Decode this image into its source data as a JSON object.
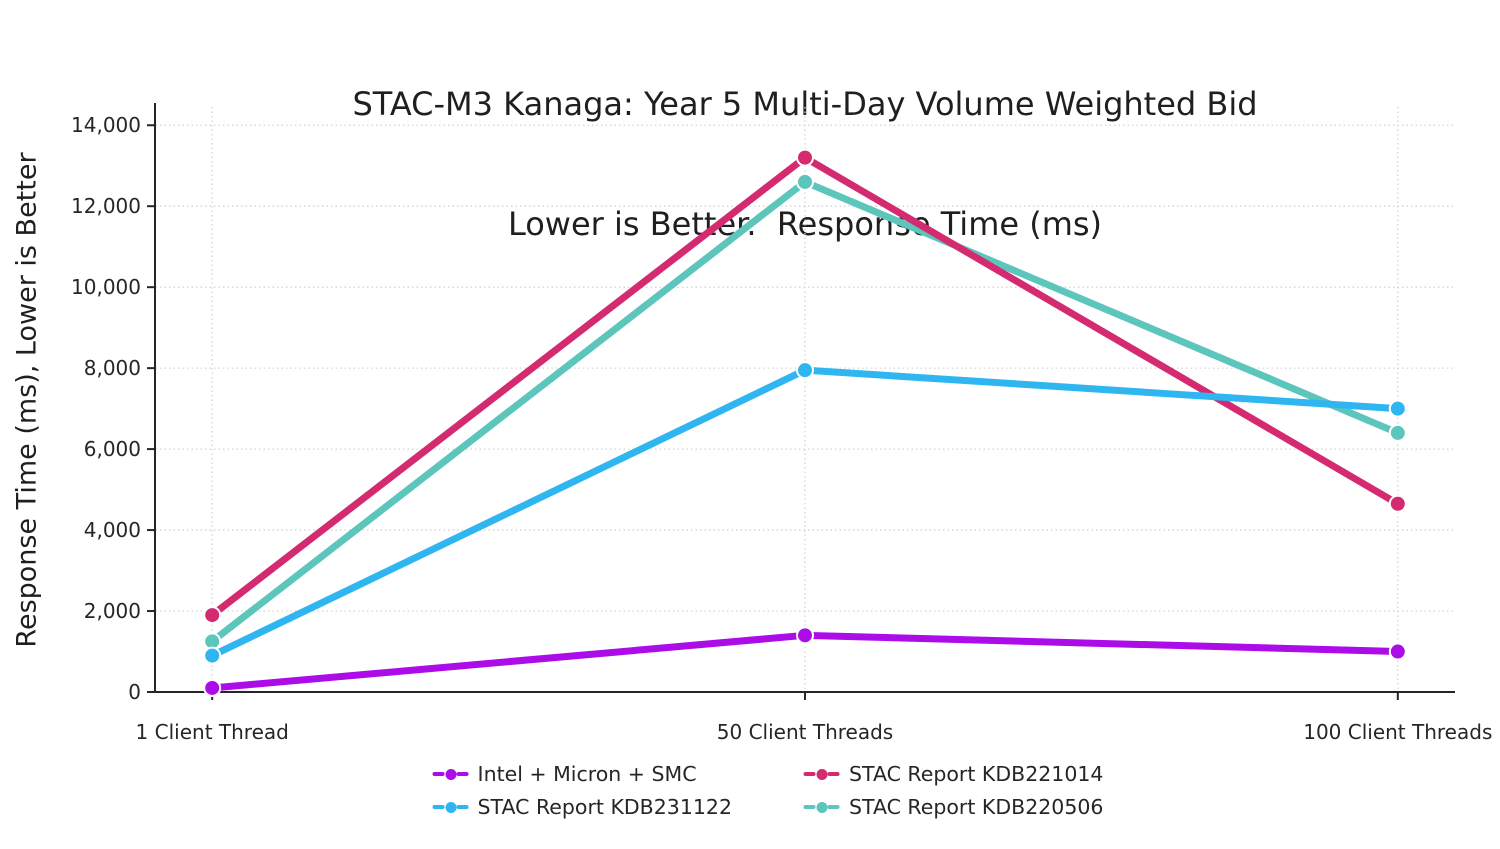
{
  "chart_data": {
    "type": "line",
    "title": "STAC-M3 Kanaga: Year 5 Multi-Day Volume Weighted Bid\nLower is Better.  Response Time (ms)",
    "title_line1": "STAC-M3 Kanaga: Year 5 Multi-Day Volume Weighted Bid",
    "title_line2": "Lower is Better.  Response Time (ms)",
    "xlabel": "",
    "ylabel": "Response Time (ms), Lower is Better",
    "categories": [
      "1 Client Thread",
      "50 Client Threads",
      "100 Client Threads"
    ],
    "series": [
      {
        "name": "Intel + Micron + SMC",
        "color": "#AC0CE8",
        "values": [
          100,
          1400,
          1000
        ]
      },
      {
        "name": "STAC Report KDB221014",
        "color": "#D42A70",
        "values": [
          1900,
          13200,
          4650
        ]
      },
      {
        "name": "STAC Report KDB231122",
        "color": "#2FB6F1",
        "values": [
          900,
          7950,
          7000
        ]
      },
      {
        "name": "STAC Report KDB220506",
        "color": "#5CC5BC",
        "values": [
          1250,
          12600,
          6400
        ]
      }
    ],
    "ylim": [
      0,
      14500
    ],
    "yticks": [
      0,
      2000,
      4000,
      6000,
      8000,
      10000,
      12000,
      14000
    ],
    "grid": true,
    "grid_style": "dotted",
    "legend_position": "bottom-center",
    "draw_order": [
      3,
      1,
      2,
      0
    ],
    "axis_color": "#262626",
    "grid_color": "#d4d4d4",
    "tick_label_color": "#262626"
  }
}
